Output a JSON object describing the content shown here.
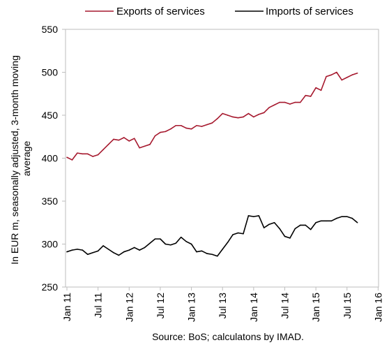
{
  "chart_data": {
    "type": "line",
    "title": "",
    "xlabel": "",
    "ylabel": "In EUR m, seasonally adjusted, 3-month moving average",
    "ylabel_lines": [
      "In EUR m, seasonally adjusted, 3-month moving",
      "average"
    ],
    "ylim": [
      250,
      550
    ],
    "yticks": [
      250,
      300,
      350,
      400,
      450,
      500,
      550
    ],
    "xlim": [
      0,
      60
    ],
    "xticks": [
      {
        "pos": 0,
        "label": "Jan 11"
      },
      {
        "pos": 6,
        "label": "Jul 11"
      },
      {
        "pos": 12,
        "label": "Jan 12"
      },
      {
        "pos": 18,
        "label": "Jul 12"
      },
      {
        "pos": 24,
        "label": "Jan 13"
      },
      {
        "pos": 30,
        "label": "Jul 13"
      },
      {
        "pos": 36,
        "label": "Jan 14"
      },
      {
        "pos": 42,
        "label": "Jul 14"
      },
      {
        "pos": 48,
        "label": "Jan 15"
      },
      {
        "pos": 54,
        "label": "Jul 15"
      },
      {
        "pos": 60,
        "label": "Jan 16"
      }
    ],
    "grid": false,
    "legend_position": "top",
    "series": [
      {
        "name": "Exports of services",
        "color": "#a6192e",
        "values": [
          401,
          398,
          406,
          405,
          405,
          402,
          404,
          410,
          416,
          422,
          421,
          424,
          420,
          423,
          412,
          414,
          416,
          426,
          430,
          431,
          434,
          438,
          438,
          435,
          434,
          438,
          437,
          439,
          441,
          446,
          452,
          450,
          448,
          447,
          448,
          452,
          448,
          451,
          453,
          459,
          462,
          465,
          465,
          463,
          465,
          465,
          473,
          472,
          482,
          479,
          495,
          497,
          500,
          491,
          494,
          497,
          499
        ]
      },
      {
        "name": "Imports of services",
        "color": "#000000",
        "values": [
          291,
          293,
          294,
          293,
          288,
          290,
          292,
          298,
          294,
          290,
          287,
          291,
          293,
          296,
          293,
          296,
          301,
          306,
          306,
          300,
          299,
          301,
          308,
          303,
          300,
          291,
          292,
          289,
          288,
          286,
          294,
          302,
          311,
          313,
          312,
          333,
          332,
          333,
          319,
          323,
          325,
          318,
          309,
          307,
          318,
          322,
          322,
          317,
          325,
          327,
          327,
          327,
          330,
          332,
          332,
          330,
          325
        ]
      }
    ]
  },
  "source_note": "Source: BoS; calculatons by IMAD."
}
